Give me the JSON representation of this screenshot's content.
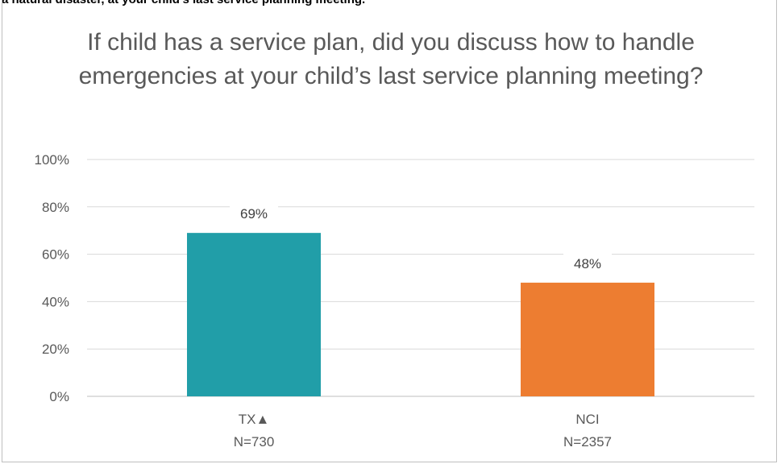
{
  "header": {
    "clipped_text": "a natural disaster, at your child's last service planning meeting."
  },
  "chart_data": {
    "type": "bar",
    "title": "If child has a service plan, did you discuss how to handle emergencies at your child’s last service planning meeting?",
    "categories": [
      "TX▲",
      "NCI"
    ],
    "category_sublabels": [
      "N=730",
      "N=2357"
    ],
    "values": [
      69,
      48
    ],
    "data_labels": [
      "69%",
      "48%"
    ],
    "bar_colors": [
      "#219EA8",
      "#ED7D31"
    ],
    "ylim": [
      0,
      100
    ],
    "yticks": [
      0,
      20,
      40,
      60,
      80,
      100
    ],
    "ytick_labels": [
      "0%",
      "20%",
      "40%",
      "60%",
      "80%",
      "100%"
    ],
    "grid": true,
    "legend": "none"
  }
}
